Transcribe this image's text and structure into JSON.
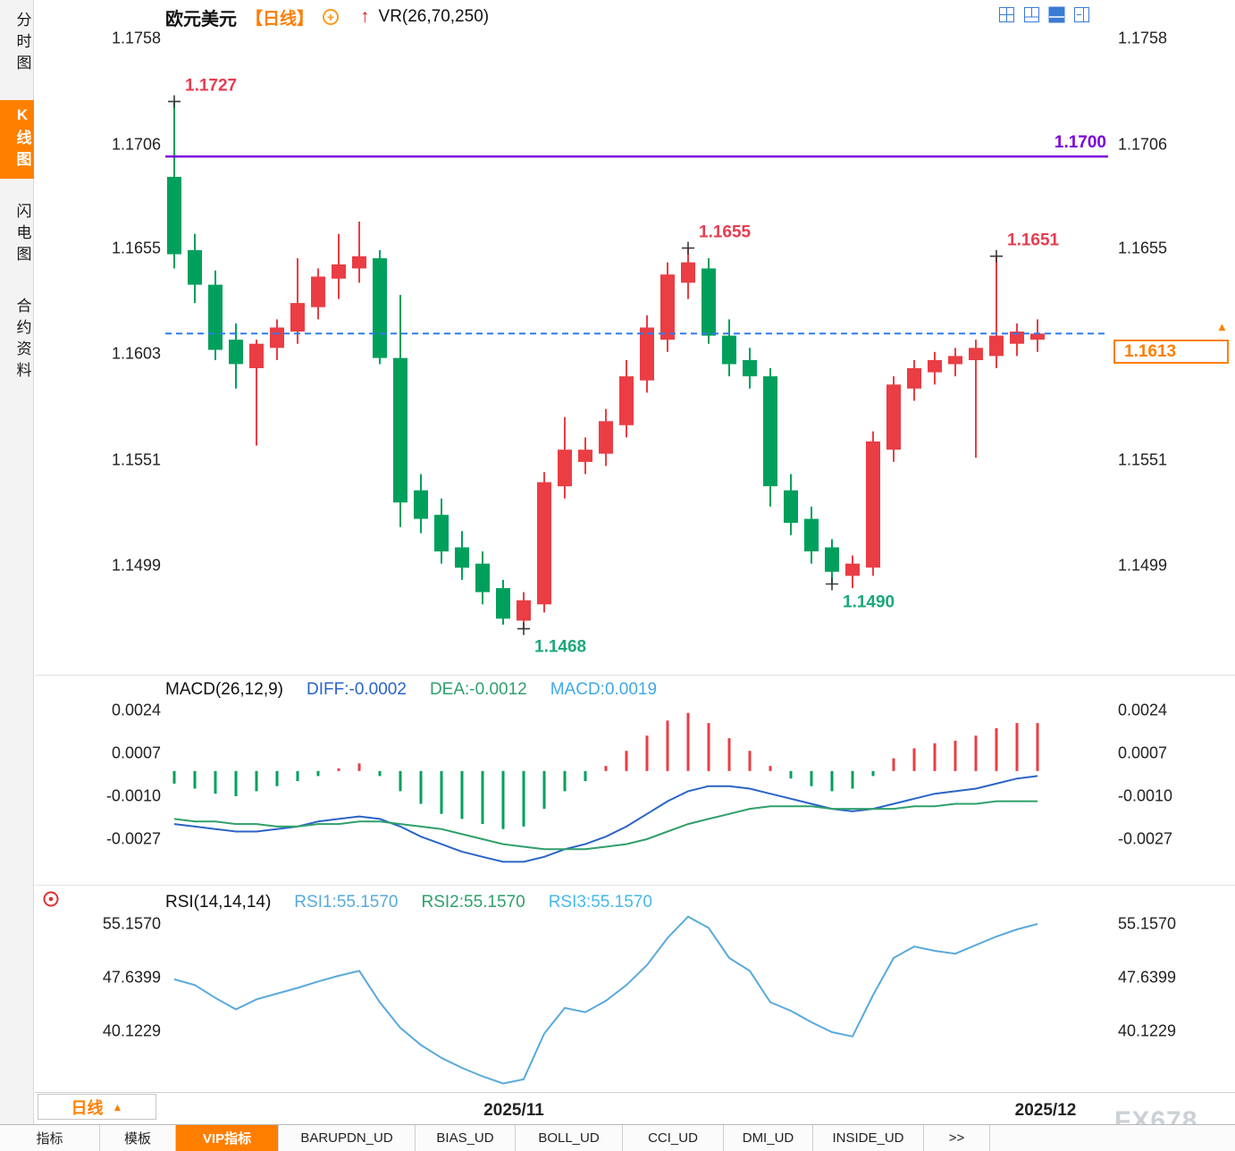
{
  "window": {
    "watermark": "FX678"
  },
  "sidebar": {
    "items": [
      {
        "label": "分时图",
        "active": false
      },
      {
        "label": "K线图",
        "active": true
      },
      {
        "label": "闪电图",
        "active": false
      },
      {
        "label": "合约资料",
        "active": false
      }
    ]
  },
  "header": {
    "symbol": "欧元美元",
    "period": "【日线】",
    "indicator": "VR(26,70,250)"
  },
  "icons": {
    "price_up_arrow": "▲",
    "period_up_arrow": "▲",
    "add_plus": "+",
    "red_arrow": "↑"
  },
  "colors": {
    "up": "#ea3d44",
    "down": "#00a05c",
    "anno_high": "#e73c50",
    "anno_low": "#1ba877",
    "accent_orange": "#ff7e00",
    "purple_line": "#7b00d8",
    "dashed_blue": "#2e7bf0",
    "diff_blue": "#2a64c8",
    "dea_green": "#2fa06a",
    "macd_label_blue": "#3fa8e8",
    "rsi_line": "#58aadc"
  },
  "bottom": {
    "period_box": {
      "label": "日线"
    },
    "tabs": [
      "指标",
      "模板",
      "VIP指标",
      "BARUPDN_UD",
      "BIAS_UD",
      "BOLL_UD",
      "CCI_UD",
      "DMI_UD",
      "INSIDE_UD",
      ">>"
    ]
  },
  "chart_data": [
    {
      "type": "candlestick",
      "title": "欧元美元 日线",
      "last_price": "1.1613",
      "x_ticks": [
        "2025/11",
        "2025/12"
      ],
      "y_ticks_left": [
        {
          "v": 1.1758,
          "label": "1.1758"
        },
        {
          "v": 1.1706,
          "label": "1.1706"
        },
        {
          "v": 1.1655,
          "label": "1.1655"
        },
        {
          "v": 1.1603,
          "label": "1.1603"
        },
        {
          "v": 1.1551,
          "label": "1.1551"
        },
        {
          "v": 1.1499,
          "label": "1.1499"
        }
      ],
      "y_ticks_right": [
        {
          "v": 1.1758,
          "label": "1.1758"
        },
        {
          "v": 1.1706,
          "label": "1.1706"
        },
        {
          "v": 1.1655,
          "label": "1.1655"
        },
        {
          "v": 1.1551,
          "label": "1.1551"
        },
        {
          "v": 1.1499,
          "label": "1.1499"
        }
      ],
      "hlines": [
        {
          "value": 1.17,
          "label": "1.1700",
          "color": "#7b00d8",
          "style": "solid"
        },
        {
          "value": 1.1613,
          "label": "",
          "color": "#2e7bf0",
          "style": "dashed"
        }
      ],
      "annotations": [
        {
          "text": "1.1727",
          "index": 0,
          "price": 1.1727,
          "type": "high"
        },
        {
          "text": "1.1655",
          "index": 25,
          "price": 1.1655,
          "type": "high"
        },
        {
          "text": "1.1651",
          "index": 40,
          "price": 1.1651,
          "type": "high"
        },
        {
          "text": "1.1468",
          "index": 17,
          "price": 1.1468,
          "type": "low"
        },
        {
          "text": "1.1490",
          "index": 32,
          "price": 1.149,
          "type": "low"
        }
      ],
      "ohlc": [
        [
          1.169,
          1.1727,
          1.1645,
          1.1652
        ],
        [
          1.1654,
          1.1662,
          1.1628,
          1.1637
        ],
        [
          1.1637,
          1.1644,
          1.16,
          1.1605
        ],
        [
          1.161,
          1.1618,
          1.1586,
          1.1598
        ],
        [
          1.1596,
          1.161,
          1.1558,
          1.1608
        ],
        [
          1.1606,
          1.162,
          1.16,
          1.1616
        ],
        [
          1.1614,
          1.165,
          1.1608,
          1.1628
        ],
        [
          1.1626,
          1.1645,
          1.162,
          1.1641
        ],
        [
          1.164,
          1.1662,
          1.163,
          1.1647
        ],
        [
          1.1645,
          1.1668,
          1.1638,
          1.1651
        ],
        [
          1.165,
          1.1654,
          1.1598,
          1.1601
        ],
        [
          1.1601,
          1.1632,
          1.1518,
          1.153
        ],
        [
          1.1536,
          1.1544,
          1.1515,
          1.1522
        ],
        [
          1.1524,
          1.1532,
          1.15,
          1.1506
        ],
        [
          1.1508,
          1.1516,
          1.1492,
          1.1498
        ],
        [
          1.15,
          1.1506,
          1.148,
          1.1486
        ],
        [
          1.1488,
          1.1492,
          1.147,
          1.1473
        ],
        [
          1.1472,
          1.1486,
          1.1468,
          1.1482
        ],
        [
          1.148,
          1.1545,
          1.1476,
          1.154
        ],
        [
          1.1538,
          1.1572,
          1.1532,
          1.1556
        ],
        [
          1.155,
          1.1562,
          1.1544,
          1.1556
        ],
        [
          1.1554,
          1.1576,
          1.1548,
          1.157
        ],
        [
          1.1568,
          1.16,
          1.1562,
          1.1592
        ],
        [
          1.159,
          1.1622,
          1.1584,
          1.1616
        ],
        [
          1.161,
          1.1648,
          1.1604,
          1.1642
        ],
        [
          1.1638,
          1.1655,
          1.163,
          1.1648
        ],
        [
          1.1645,
          1.165,
          1.1608,
          1.1612
        ],
        [
          1.1612,
          1.162,
          1.1592,
          1.1598
        ],
        [
          1.16,
          1.1606,
          1.1586,
          1.1592
        ],
        [
          1.1592,
          1.1596,
          1.1528,
          1.1538
        ],
        [
          1.1536,
          1.1544,
          1.1514,
          1.152
        ],
        [
          1.1522,
          1.1528,
          1.15,
          1.1506
        ],
        [
          1.1508,
          1.1512,
          1.149,
          1.1496
        ],
        [
          1.1494,
          1.1504,
          1.1488,
          1.15
        ],
        [
          1.1498,
          1.1565,
          1.1494,
          1.156
        ],
        [
          1.1556,
          1.1592,
          1.155,
          1.1588
        ],
        [
          1.1586,
          1.16,
          1.158,
          1.1596
        ],
        [
          1.1594,
          1.1604,
          1.1588,
          1.16
        ],
        [
          1.1598,
          1.1606,
          1.1592,
          1.1602
        ],
        [
          1.16,
          1.161,
          1.1552,
          1.1606
        ],
        [
          1.1602,
          1.1651,
          1.1596,
          1.1612
        ],
        [
          1.1608,
          1.1618,
          1.1602,
          1.1614
        ],
        [
          1.161,
          1.162,
          1.1604,
          1.1613
        ]
      ]
    },
    {
      "type": "macd",
      "label": "MACD(26,12,9)",
      "readings": [
        "DIFF:-0.0002",
        "DEA:-0.0012",
        "MACD:0.0019"
      ],
      "y_ticks": [
        {
          "v": 0.0024,
          "label": "0.0024"
        },
        {
          "v": 0.0007,
          "label": "0.0007"
        },
        {
          "v": -0.001,
          "label": "-0.0010"
        },
        {
          "v": -0.0027,
          "label": "-0.0027"
        }
      ],
      "diff": [
        -0.0021,
        -0.0022,
        -0.0023,
        -0.0024,
        -0.0024,
        -0.0023,
        -0.0022,
        -0.002,
        -0.0019,
        -0.0018,
        -0.0019,
        -0.0022,
        -0.0026,
        -0.0029,
        -0.0032,
        -0.0034,
        -0.0036,
        -0.0036,
        -0.0034,
        -0.0031,
        -0.0029,
        -0.0026,
        -0.0022,
        -0.0017,
        -0.0012,
        -0.0008,
        -0.0006,
        -0.0006,
        -0.0007,
        -0.0009,
        -0.0011,
        -0.0013,
        -0.0015,
        -0.0016,
        -0.0015,
        -0.0013,
        -0.0011,
        -0.0009,
        -0.0008,
        -0.0007,
        -0.0005,
        -0.0003,
        -0.0002
      ],
      "dea": [
        -0.0019,
        -0.002,
        -0.002,
        -0.0021,
        -0.0021,
        -0.0022,
        -0.0022,
        -0.0021,
        -0.0021,
        -0.002,
        -0.002,
        -0.0021,
        -0.0022,
        -0.0023,
        -0.0025,
        -0.0027,
        -0.0029,
        -0.003,
        -0.0031,
        -0.0031,
        -0.0031,
        -0.003,
        -0.0029,
        -0.0027,
        -0.0024,
        -0.0021,
        -0.0019,
        -0.0017,
        -0.0015,
        -0.0014,
        -0.0014,
        -0.0014,
        -0.0015,
        -0.0015,
        -0.0015,
        -0.0015,
        -0.0014,
        -0.0014,
        -0.0013,
        -0.0013,
        -0.0012,
        -0.0012,
        -0.0012
      ],
      "hist": [
        -0.0005,
        -0.0007,
        -0.0009,
        -0.001,
        -0.0008,
        -0.0006,
        -0.0004,
        -0.0002,
        0.0001,
        0.0003,
        -0.0002,
        -0.0008,
        -0.0013,
        -0.0017,
        -0.0019,
        -0.0021,
        -0.0023,
        -0.0022,
        -0.0015,
        -0.0008,
        -0.0004,
        0.0002,
        0.0008,
        0.0014,
        0.002,
        0.0023,
        0.0019,
        0.0013,
        0.0008,
        0.0002,
        -0.0003,
        -0.0006,
        -0.0008,
        -0.0007,
        -0.0002,
        0.0005,
        0.0009,
        0.0011,
        0.0012,
        0.0014,
        0.0017,
        0.0019,
        0.0019
      ]
    },
    {
      "type": "rsi",
      "label": "RSI(14,14,14)",
      "readings": [
        "RSI1:55.1570",
        "RSI2:55.1570",
        "RSI3:55.1570"
      ],
      "y_ticks": [
        {
          "v": 55.157,
          "label": "55.1570"
        },
        {
          "v": 47.6399,
          "label": "47.6399"
        },
        {
          "v": 40.1229,
          "label": "40.1229"
        }
      ],
      "values": [
        47.4,
        46.6,
        44.8,
        43.2,
        44.6,
        45.4,
        46.2,
        47.1,
        47.9,
        48.6,
        44.2,
        40.6,
        38.2,
        36.4,
        35.0,
        33.8,
        32.8,
        33.4,
        39.8,
        43.4,
        42.8,
        44.4,
        46.6,
        49.4,
        53.2,
        56.2,
        54.6,
        50.4,
        48.6,
        44.2,
        43.0,
        41.4,
        40.0,
        39.4,
        45.2,
        50.4,
        52.0,
        51.4,
        51.0,
        52.2,
        53.4,
        54.4,
        55.16
      ]
    }
  ]
}
